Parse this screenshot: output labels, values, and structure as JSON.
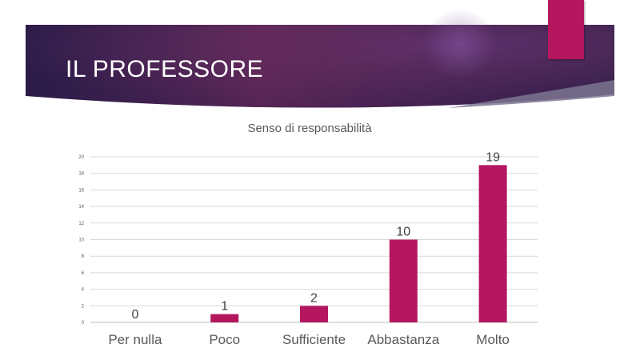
{
  "slide": {
    "title": "IL PROFESSORE",
    "colors": {
      "banner_dark": "#2b1c4a",
      "banner_mid": "#6b2d63",
      "accent": "#b5175f"
    }
  },
  "chart_data": {
    "type": "bar",
    "title": "Senso di responsabilità",
    "categories": [
      "Per nulla",
      "Poco",
      "Sufficiente",
      "Abbastanza",
      "Molto"
    ],
    "values": [
      0,
      1,
      2,
      10,
      19
    ],
    "ylim": [
      0,
      20
    ],
    "yticks": [
      0,
      2,
      4,
      6,
      8,
      10,
      12,
      14,
      16,
      18,
      20
    ],
    "xlabel": "",
    "ylabel": "",
    "grid": true,
    "legend": "none",
    "bar_color": "#b5175f"
  }
}
